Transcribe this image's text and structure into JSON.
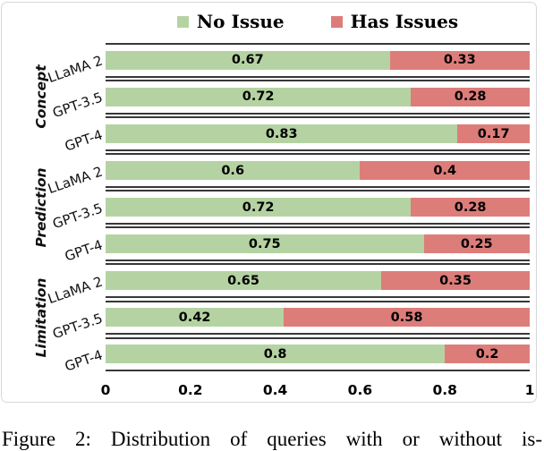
{
  "caption": "Figure 2: Distribution of queries with or without is-",
  "chart_data": {
    "type": "bar",
    "orientation": "horizontal",
    "stacked": true,
    "title": "",
    "legend": [
      "No Issue",
      "Has Issues"
    ],
    "colors": [
      "#b5d3a2",
      "#dd7d7a"
    ],
    "line_color": "#383838",
    "xlim": [
      0,
      1
    ],
    "x_ticks": [
      "0",
      "0.2",
      "0.4",
      "0.6",
      "0.8",
      "1"
    ],
    "groups": [
      {
        "label": "Concept",
        "rows": [
          {
            "model": "LLaMA 2",
            "no_issue": "0.67",
            "has_issues": "0.33"
          },
          {
            "model": "GPT-3.5",
            "no_issue": "0.72",
            "has_issues": "0.28"
          },
          {
            "model": "GPT-4",
            "no_issue": "0.83",
            "has_issues": "0.17"
          }
        ]
      },
      {
        "label": "Prediction",
        "rows": [
          {
            "model": "LLaMA 2",
            "no_issue": "0.6",
            "has_issues": "0.4"
          },
          {
            "model": "GPT-3.5",
            "no_issue": "0.72",
            "has_issues": "0.28"
          },
          {
            "model": "GPT-4",
            "no_issue": "0.75",
            "has_issues": "0.25"
          }
        ]
      },
      {
        "label": "Limitation",
        "rows": [
          {
            "model": "LLaMA 2",
            "no_issue": "0.65",
            "has_issues": "0.35"
          },
          {
            "model": "GPT-3.5",
            "no_issue": "0.42",
            "has_issues": "0.58"
          },
          {
            "model": "GPT-4",
            "no_issue": "0.8",
            "has_issues": "0.2"
          }
        ]
      }
    ]
  }
}
